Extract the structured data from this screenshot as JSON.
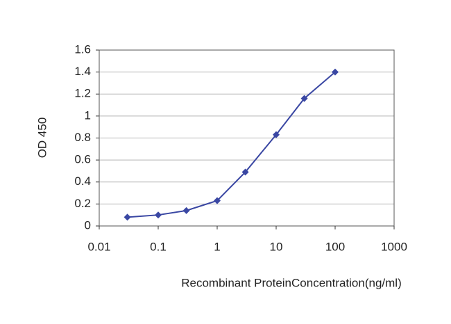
{
  "chart_data": {
    "type": "line",
    "x_label": "Recombinant ProteinConcentration(ng/ml)",
    "y_label": "OD 450",
    "x": [
      0.03,
      0.1,
      0.3,
      1,
      3,
      10,
      30,
      100
    ],
    "series": [
      {
        "color": "#3a47a3",
        "values": [
          0.08,
          0.1,
          0.14,
          0.23,
          0.49,
          0.83,
          1.16,
          1.4
        ]
      }
    ],
    "xscale": "log",
    "xlim": [
      0.01,
      1000
    ],
    "xticks": [
      0.01,
      0.1,
      1,
      10,
      100,
      1000
    ],
    "ylim": [
      0,
      1.6
    ],
    "yticks": [
      0,
      0.2,
      0.4,
      0.6,
      0.8,
      1,
      1.2,
      1.4,
      1.6
    ],
    "grid": true
  }
}
